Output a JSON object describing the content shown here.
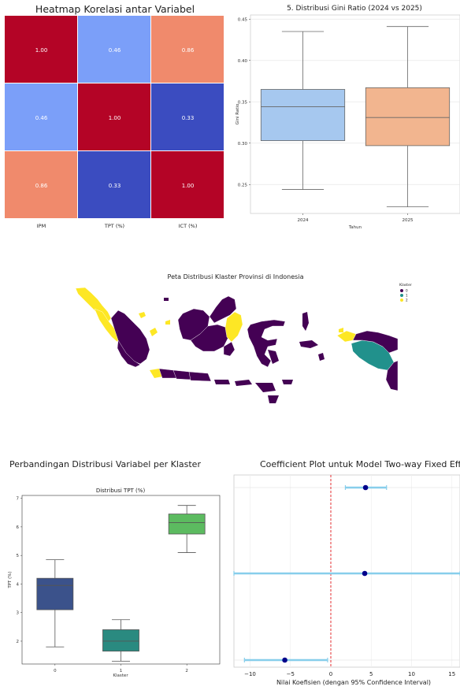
{
  "heatmap": {
    "title": "Heatmap Korelasi antar Variabel",
    "labels": [
      "IPM",
      "TPT (%)",
      "ICT (%)"
    ],
    "matrix": [
      [
        1.0,
        0.46,
        0.86
      ],
      [
        0.46,
        1.0,
        0.33
      ],
      [
        0.86,
        0.33,
        1.0
      ]
    ],
    "colors": {
      "high": "#b40426",
      "mid_high": "#f08a6c",
      "mid": "#7b9ff9",
      "low": "#3b4cc0"
    }
  },
  "chart_data": [
    {
      "type": "heatmap",
      "title": "Heatmap Korelasi antar Variabel",
      "categories": [
        "IPM",
        "TPT (%)",
        "ICT (%)"
      ],
      "values": [
        [
          1.0,
          0.46,
          0.86
        ],
        [
          0.46,
          1.0,
          0.33
        ],
        [
          0.86,
          0.33,
          1.0
        ]
      ]
    },
    {
      "type": "box",
      "title": "5. Distribusi Gini Ratio (2024 vs 2025)",
      "xlabel": "Tahun",
      "ylabel": "Gini Ratio",
      "ylim": [
        0.215,
        0.455
      ],
      "yticks": [
        "0.25",
        "0.30",
        "0.35",
        "0.40",
        "0.45"
      ],
      "categories": [
        "2024",
        "2025"
      ],
      "boxes": [
        {
          "label": "2024",
          "whislo": 0.244,
          "q1": 0.303,
          "med": 0.344,
          "q3": 0.365,
          "whishi": 0.435,
          "color": "#a6c8ef"
        },
        {
          "label": "2025",
          "whislo": 0.223,
          "q1": 0.297,
          "med": 0.331,
          "q3": 0.367,
          "whishi": 0.441,
          "color": "#f2b58f"
        }
      ]
    },
    {
      "type": "map",
      "title": "Peta Distribusi Klaster Provinsi di Indonesia",
      "legend_title": "Klaster",
      "legend": [
        {
          "label": "0",
          "color": "#440154"
        },
        {
          "label": "1",
          "color": "#21918c"
        },
        {
          "label": "2",
          "color": "#fde725"
        }
      ]
    },
    {
      "type": "box",
      "suptitle": "Perbandingan Distribusi Variabel per Klaster",
      "title": "Distribusi TPT (%)",
      "xlabel": "Klaster",
      "ylabel": "TPT (%)",
      "ylim": [
        1.2,
        7.1
      ],
      "yticks": [
        "2",
        "3",
        "4",
        "5",
        "6",
        "7"
      ],
      "categories": [
        "0",
        "1",
        "2"
      ],
      "boxes": [
        {
          "label": "0",
          "whislo": 1.8,
          "q1": 3.1,
          "med": 3.95,
          "q3": 4.2,
          "whishi": 4.85,
          "color": "#3b528b"
        },
        {
          "label": "1",
          "whislo": 1.3,
          "q1": 1.65,
          "med": 2.0,
          "q3": 2.4,
          "whishi": 2.75,
          "color": "#2a8a80"
        },
        {
          "label": "2",
          "whislo": 5.1,
          "q1": 5.75,
          "med": 6.15,
          "q3": 6.45,
          "whishi": 6.75,
          "color": "#5cbb60"
        }
      ]
    },
    {
      "type": "scatter",
      "title": "Coefficient Plot untuk Model Two-way Fixed Effe",
      "xlabel": "Nilai Koefisien (dengan 95% Confidence Interval)",
      "xlim": [
        -12,
        16
      ],
      "xticks": [
        "−10",
        "−5",
        "0",
        "5",
        "10",
        "15"
      ],
      "reference_line": 0,
      "points": [
        {
          "estimate": 4.3,
          "ci_low": 1.8,
          "ci_high": 6.9
        },
        {
          "estimate": 4.2,
          "ci_low": -12,
          "ci_high": 16
        },
        {
          "estimate": -5.7,
          "ci_low": -10.7,
          "ci_high": -0.4
        }
      ],
      "colors": {
        "point": "#00008b",
        "ci": "#87ceeb",
        "ref": "#e31a1c"
      }
    }
  ]
}
